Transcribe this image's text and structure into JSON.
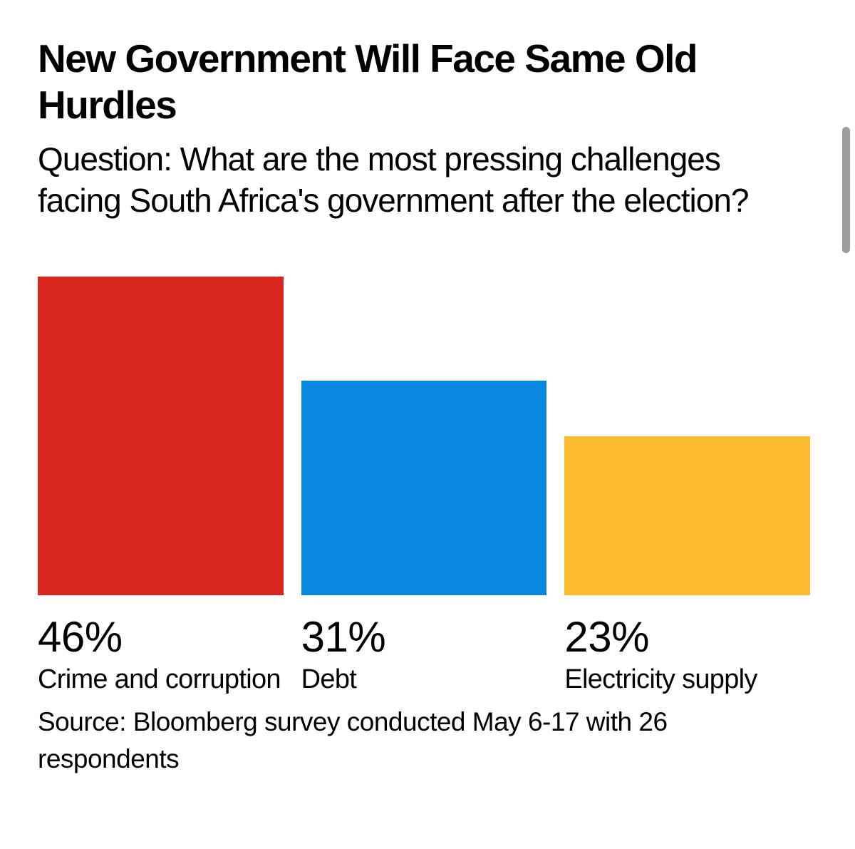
{
  "chart_data": {
    "type": "bar",
    "orientation": "vertical",
    "title": "New Government Will Face Same Old Hurdles",
    "subtitle": "Question: What are the most pressing challenges facing South Africa's government after the election?",
    "categories": [
      "Crime and corruption",
      "Debt",
      "Electricity supply"
    ],
    "values": [
      46,
      31,
      23
    ],
    "value_labels": [
      "46%",
      "31%",
      "23%"
    ],
    "colors": [
      "#d8261e",
      "#0588dd",
      "#fcba2f"
    ],
    "unit": "%",
    "ylim": [
      0,
      46
    ],
    "grid": false,
    "legend": false,
    "source": "Source: Bloomberg survey conducted May 6-17 with 26 respondents"
  },
  "scrollbar": {
    "color": "#9b9b9b"
  }
}
